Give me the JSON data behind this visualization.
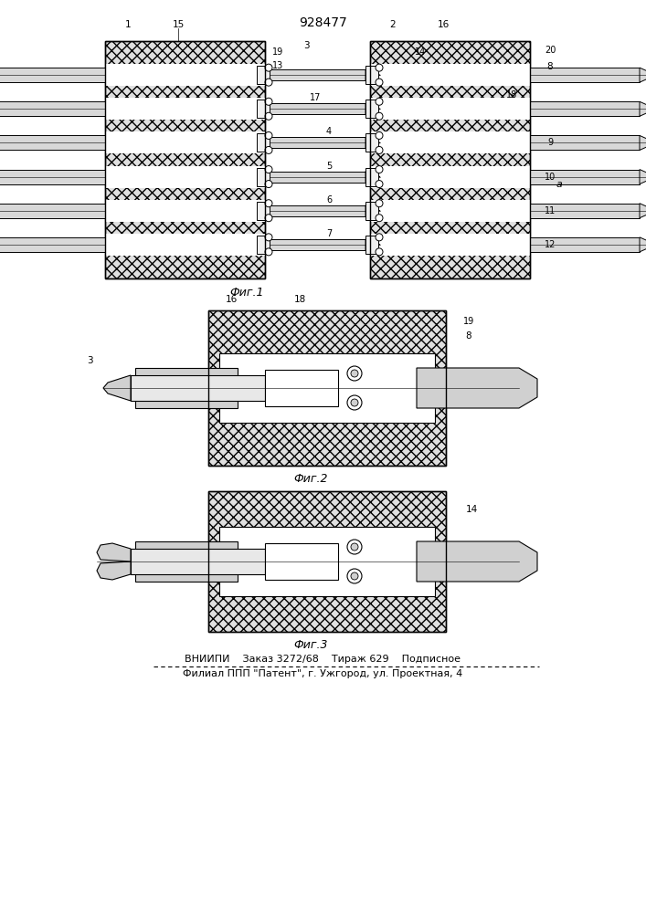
{
  "patent_number": "928477",
  "fig1_caption": "Фиг.1",
  "fig2_caption": "Фиг.2",
  "fig3_caption": "Фиг.3",
  "footer_line1": "ВНИИПИ    Заказ 3272/68    Тираж 629    Подписное",
  "footer_line2": "Филиал ППП \"Патент\", г. Ужгород, ул. Проектная, 4",
  "bg_color": "#ffffff",
  "hatch_color": "#000000",
  "line_color": "#000000"
}
